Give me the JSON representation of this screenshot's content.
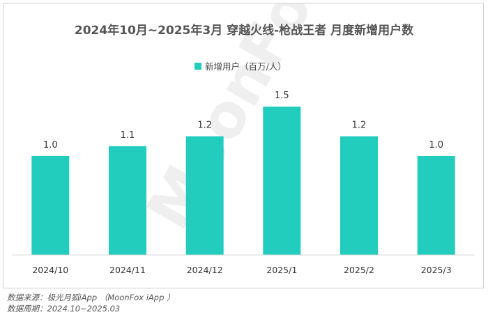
{
  "chart_data": {
    "type": "bar",
    "title": "2024年10月~2025年3月 穿越火线-枪战王者 月度新增用户数",
    "legend": {
      "label": "新增用户（百万/人）",
      "position": "top"
    },
    "categories": [
      "2024/10",
      "2024/11",
      "2024/12",
      "2025/1",
      "2025/2",
      "2025/3"
    ],
    "series": [
      {
        "name": "新增用户（百万/人）",
        "values": [
          1.0,
          1.1,
          1.2,
          1.5,
          1.2,
          1.0
        ]
      }
    ],
    "value_labels": [
      "1.0",
      "1.1",
      "1.2",
      "1.5",
      "1.2",
      "1.0"
    ],
    "ylim": [
      0,
      1.6
    ],
    "grid": false,
    "colors": {
      "bar": "#22CDBE"
    }
  },
  "watermark": "MoonFox",
  "footer": {
    "source": "数据来源：极光月狐iApp （MoonFox iApp ）",
    "period": "数据周期：2024.10~2025.03"
  }
}
